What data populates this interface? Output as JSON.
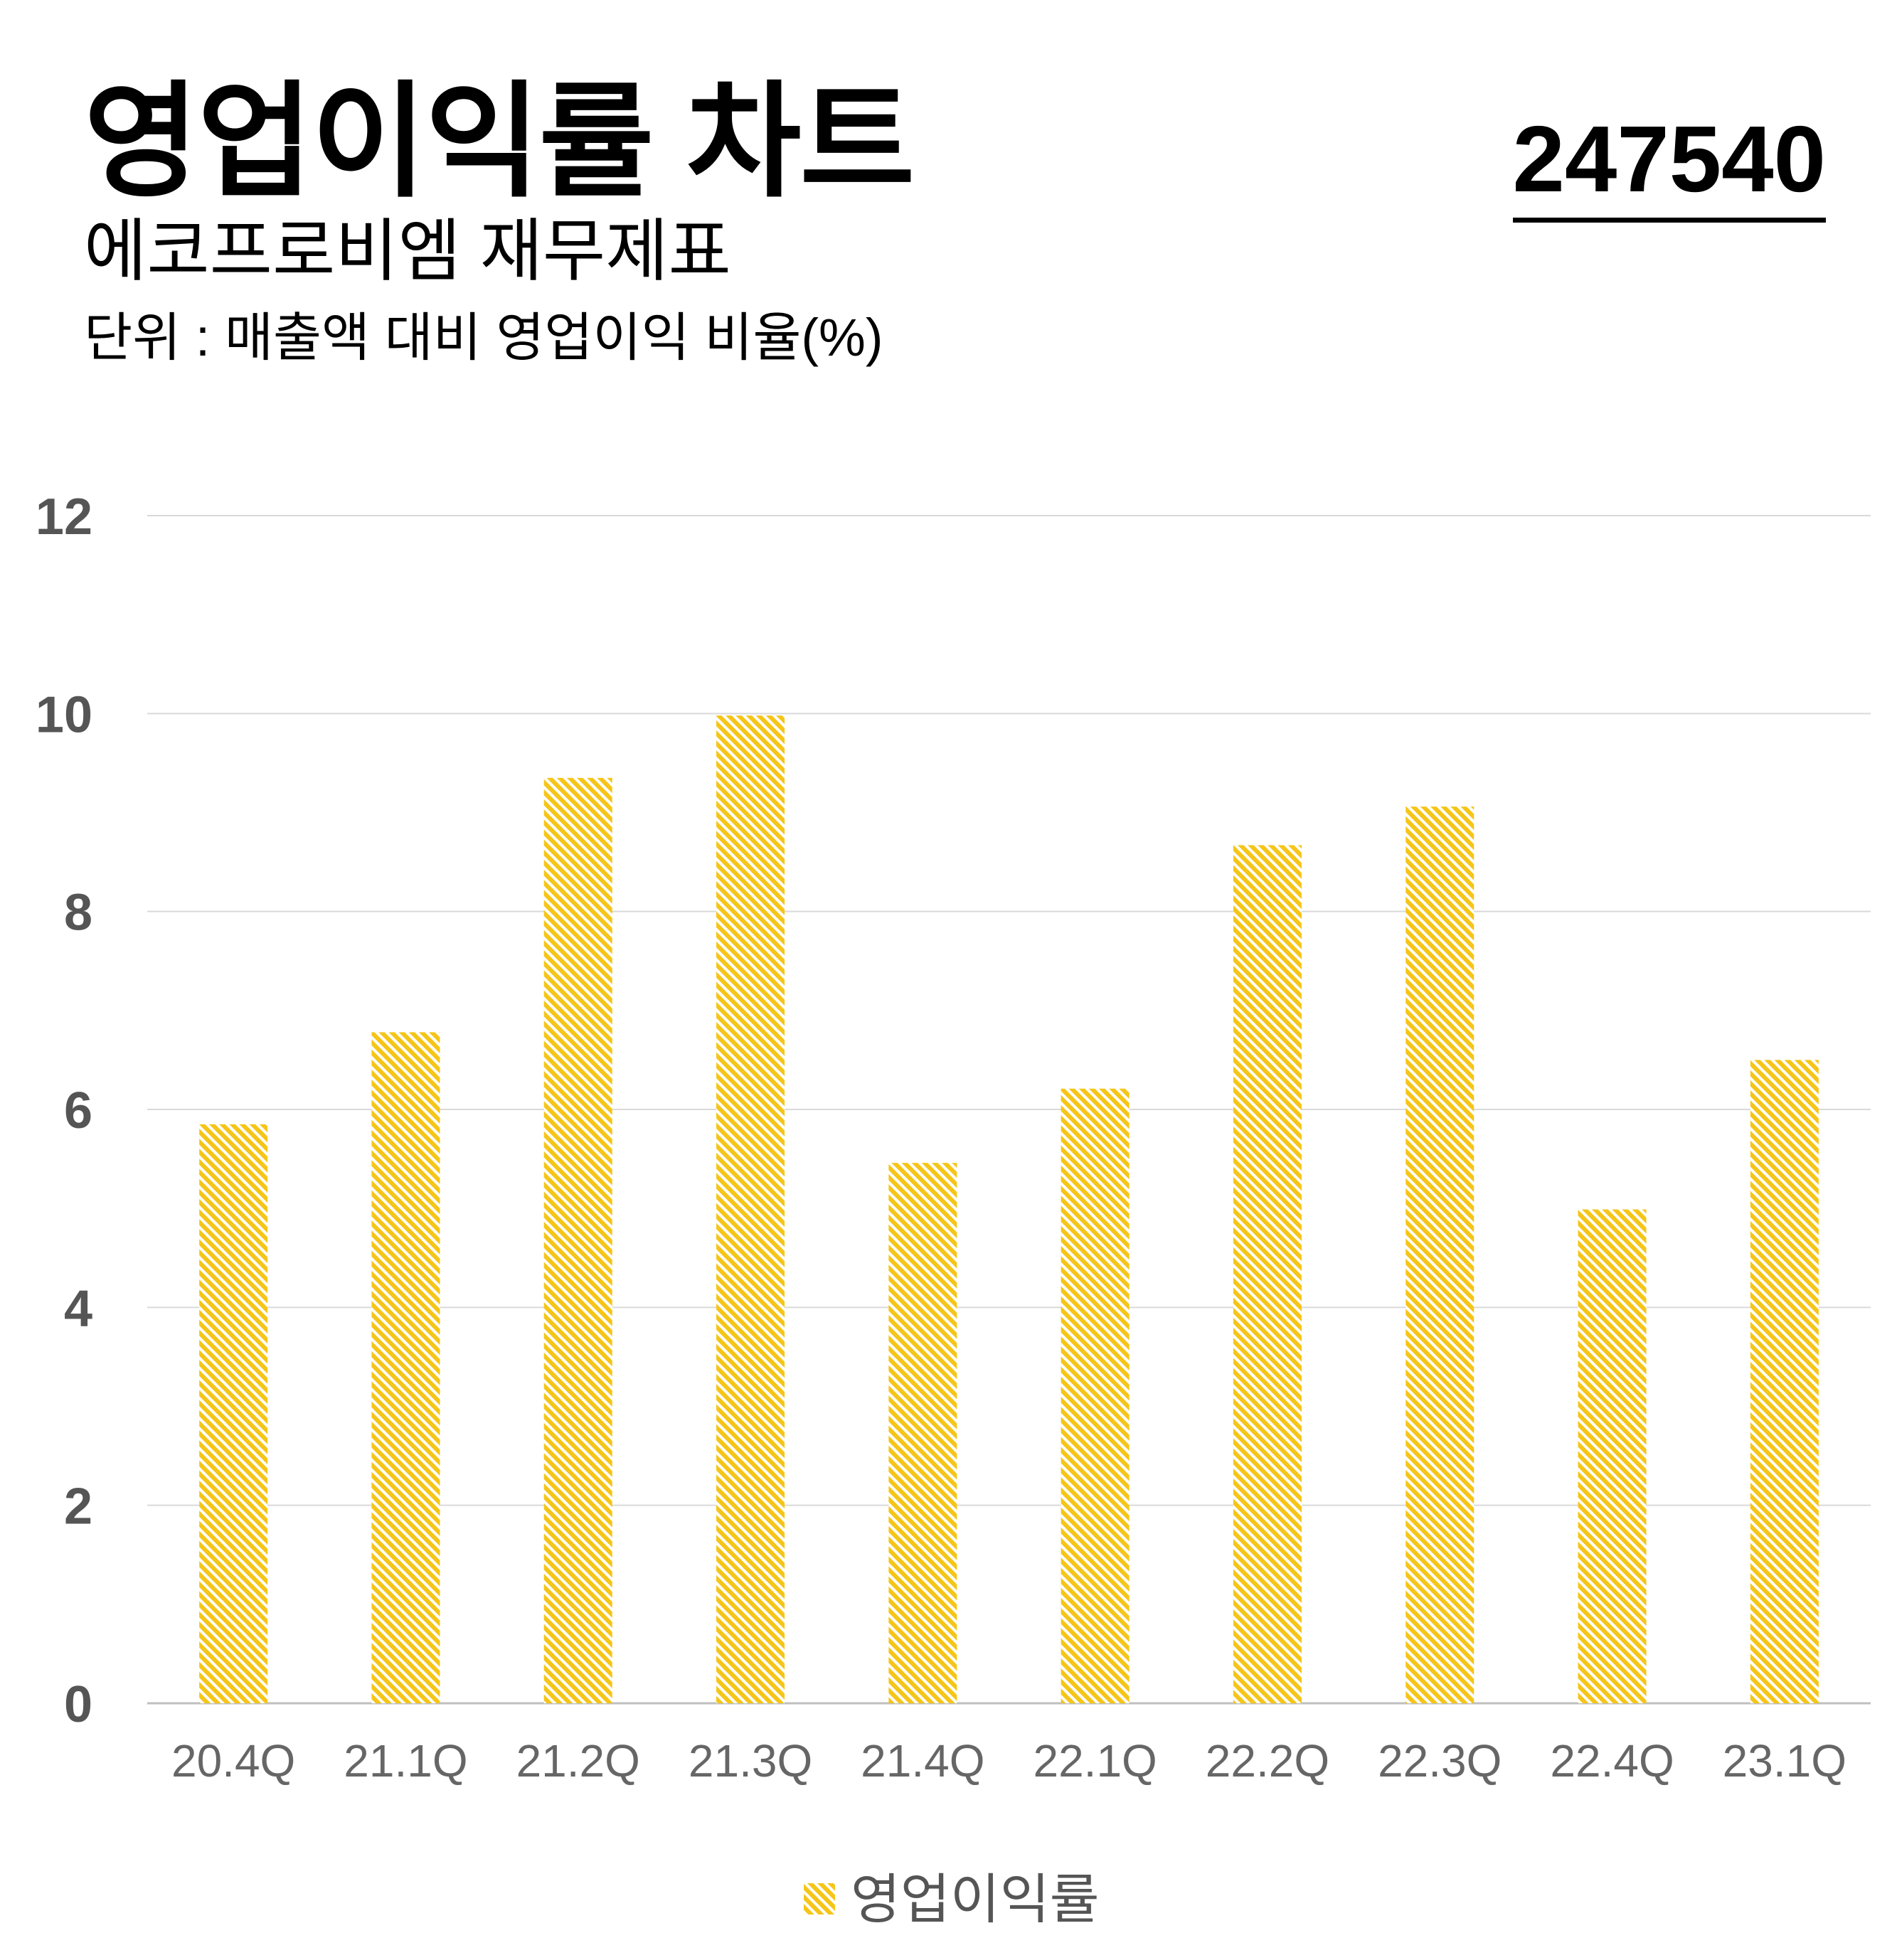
{
  "header": {
    "title": "영업이익률 차트",
    "code": "247540",
    "subtitle": "에코프로비엠 재무제표",
    "unit": "단위 : 매출액 대비 영업이익 비율(%)"
  },
  "colors": {
    "bar": "#F5C518",
    "grid": "#D9D9D9",
    "axis_text": "#555555"
  },
  "chart_data": {
    "type": "bar",
    "categories": [
      "20.4Q",
      "21.1Q",
      "21.2Q",
      "21.3Q",
      "21.4Q",
      "22.1Q",
      "22.2Q",
      "22.3Q",
      "22.4Q",
      "23.1Q"
    ],
    "series": [
      {
        "name": "영업이익률",
        "values": [
          5.85,
          6.78,
          9.35,
          9.98,
          5.46,
          6.21,
          8.67,
          9.06,
          4.99,
          6.5
        ]
      }
    ],
    "yticks": [
      "0",
      "2",
      "4",
      "6",
      "8",
      "10",
      "12"
    ],
    "ylim": [
      0,
      12
    ],
    "grid": true,
    "legend": "bottom-center",
    "bar_fill": "diagonal-hatch"
  }
}
